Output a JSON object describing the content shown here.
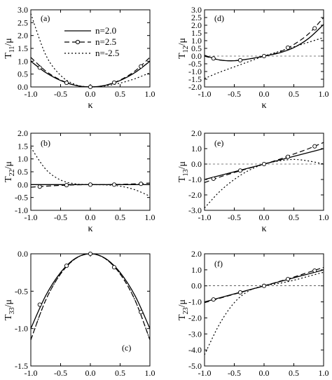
{
  "chart_data": [
    {
      "type": "line",
      "panel_label": "(a)",
      "xlabel": "κ",
      "ylabel_main": "T",
      "ylabel_sub": "11",
      "ylabel_tail": "/μ",
      "xlim": [
        -1.0,
        1.0
      ],
      "ylim": [
        0.0,
        3.0
      ],
      "xticks": [
        "-1.0",
        "-0.5",
        "0.0",
        "0.5",
        "1.0"
      ],
      "yticks": [
        "0.0",
        "0.5",
        "1.0",
        "1.5",
        "2.0",
        "2.5",
        "3.0"
      ],
      "x": [
        -1.0,
        -0.75,
        -0.5,
        -0.25,
        0.0,
        0.25,
        0.5,
        0.75,
        1.0
      ],
      "series": [
        {
          "name": "n=2.0",
          "style": "solid",
          "values": [
            1.0,
            0.56,
            0.25,
            0.06,
            0.0,
            0.06,
            0.25,
            0.56,
            1.0
          ]
        },
        {
          "name": "n=2.5",
          "style": "dashed",
          "values": [
            1.15,
            0.62,
            0.27,
            0.065,
            0.0,
            0.065,
            0.27,
            0.62,
            1.15
          ]
        },
        {
          "name": "n=-2.5",
          "style": "dotted",
          "values": [
            2.85,
            1.25,
            0.45,
            0.09,
            0.0,
            0.04,
            0.15,
            0.32,
            0.55
          ]
        }
      ],
      "markers": [
        {
          "x": -0.85,
          "y": 0.75
        },
        {
          "x": -0.4,
          "y": 0.16
        },
        {
          "x": 0.0,
          "y": 0.0
        },
        {
          "x": 0.4,
          "y": 0.17
        },
        {
          "x": 0.85,
          "y": 0.8
        }
      ]
    },
    {
      "type": "line",
      "panel_label": "(d)",
      "xlabel": "κ",
      "ylabel_main": "T",
      "ylabel_sub": "12",
      "ylabel_tail": "/μ",
      "xlim": [
        -1.0,
        1.0
      ],
      "ylim": [
        -2.0,
        3.0
      ],
      "xticks": [
        "-1.0",
        "-0.5",
        "0.0",
        "0.5",
        "1.0"
      ],
      "yticks": [
        "-2.0",
        "-1.5",
        "-1.0",
        "-0.5",
        "0.0",
        "0.5",
        "1.0",
        "1.5",
        "2.0",
        "2.5",
        "3.0"
      ],
      "x": [
        -1.0,
        -0.75,
        -0.5,
        -0.25,
        0.0,
        0.25,
        0.5,
        0.75,
        1.0
      ],
      "series": [
        {
          "name": "n=2.0",
          "style": "solid",
          "values": [
            0.05,
            -0.25,
            -0.3,
            -0.18,
            0.0,
            0.2,
            0.55,
            1.15,
            2.05
          ]
        },
        {
          "name": "n=2.5",
          "style": "dashed",
          "values": [
            0.0,
            -0.25,
            -0.3,
            -0.18,
            0.0,
            0.25,
            0.75,
            1.45,
            2.5
          ]
        },
        {
          "name": "n=-2.5",
          "style": "dotted",
          "values": [
            -1.45,
            -1.05,
            -0.7,
            -0.35,
            0.0,
            0.3,
            0.6,
            0.9,
            1.2
          ]
        }
      ],
      "markers": [
        {
          "x": -0.85,
          "y": -0.15
        },
        {
          "x": -0.4,
          "y": -0.27
        },
        {
          "x": 0.0,
          "y": 0.0
        },
        {
          "x": 0.4,
          "y": 0.55
        },
        {
          "x": 0.85,
          "y": 1.8
        }
      ]
    },
    {
      "type": "line",
      "panel_label": "(b)",
      "xlabel": "κ",
      "ylabel_main": "T",
      "ylabel_sub": "22",
      "ylabel_tail": "/μ",
      "xlim": [
        -1.0,
        1.0
      ],
      "ylim": [
        -1.0,
        2.0
      ],
      "xticks": [
        "-1.0",
        "-0.5",
        "0.0",
        "0.5",
        "1.0"
      ],
      "yticks": [
        "-1.0",
        "-0.5",
        "0.0",
        "0.5",
        "1.0",
        "1.5",
        "2.0"
      ],
      "x": [
        -1.0,
        -0.75,
        -0.5,
        -0.25,
        0.0,
        0.25,
        0.5,
        0.75,
        1.0
      ],
      "series": [
        {
          "name": "n=2.0",
          "style": "solid",
          "values": [
            0.0,
            0.0,
            0.0,
            0.0,
            0.0,
            0.0,
            0.0,
            0.0,
            0.0
          ]
        },
        {
          "name": "n=2.5",
          "style": "dashed",
          "values": [
            -0.1,
            -0.06,
            -0.03,
            -0.01,
            0.0,
            0.0,
            0.01,
            0.03,
            0.06
          ]
        },
        {
          "name": "n=-2.5",
          "style": "dotted",
          "values": [
            1.45,
            0.6,
            0.18,
            0.03,
            0.0,
            -0.01,
            -0.06,
            -0.2,
            -0.45
          ]
        }
      ],
      "markers": [
        {
          "x": -0.85,
          "y": -0.08
        },
        {
          "x": -0.4,
          "y": -0.02
        },
        {
          "x": 0.0,
          "y": 0.0
        },
        {
          "x": 0.4,
          "y": 0.0
        },
        {
          "x": 0.85,
          "y": 0.03
        }
      ]
    },
    {
      "type": "line",
      "panel_label": "(e)",
      "xlabel": "κ",
      "ylabel_main": "T",
      "ylabel_sub": "13",
      "ylabel_tail": "/μ",
      "xlim": [
        -1.0,
        1.0
      ],
      "ylim": [
        -3.0,
        2.0
      ],
      "xticks": [
        "-1.0",
        "-0.5",
        "0.0",
        "0.5",
        "1.0"
      ],
      "yticks": [
        "-3.0",
        "-2.0",
        "-1.0",
        "0.0",
        "1.0",
        "2.0"
      ],
      "x": [
        -1.0,
        -0.75,
        -0.5,
        -0.25,
        0.0,
        0.25,
        0.5,
        0.75,
        1.0
      ],
      "series": [
        {
          "name": "n=2.0",
          "style": "solid",
          "values": [
            -1.0,
            -0.75,
            -0.5,
            -0.25,
            0.0,
            0.25,
            0.5,
            0.75,
            1.0
          ]
        },
        {
          "name": "n=2.5",
          "style": "dashed",
          "values": [
            -1.2,
            -0.85,
            -0.55,
            -0.27,
            0.0,
            0.3,
            0.65,
            1.0,
            1.4
          ]
        },
        {
          "name": "n=-2.5",
          "style": "dotted",
          "values": [
            -2.85,
            -1.8,
            -1.0,
            -0.4,
            0.0,
            0.2,
            0.3,
            0.2,
            0.0
          ]
        }
      ],
      "markers": [
        {
          "x": -0.85,
          "y": -0.95
        },
        {
          "x": -0.4,
          "y": -0.42
        },
        {
          "x": 0.0,
          "y": 0.0
        },
        {
          "x": 0.4,
          "y": 0.47
        },
        {
          "x": 0.85,
          "y": 1.15
        }
      ]
    },
    {
      "type": "line",
      "panel_label": "(c)",
      "xlabel": "κ",
      "ylabel_main": "T",
      "ylabel_sub": "33",
      "ylabel_tail": "/μ",
      "xlim": [
        -1.0,
        1.0
      ],
      "ylim": [
        -1.5,
        0.0
      ],
      "xticks": [
        "-1.0",
        "-0.5",
        "0.0",
        "0.5",
        "1.0"
      ],
      "yticks": [
        "-1.5",
        "-1.0",
        "-0.5",
        "0.0"
      ],
      "x": [
        -1.0,
        -0.75,
        -0.5,
        -0.25,
        0.0,
        0.25,
        0.5,
        0.75,
        1.0
      ],
      "series": [
        {
          "name": "n=2.0",
          "style": "solid",
          "values": [
            -1.0,
            -0.56,
            -0.25,
            -0.06,
            0.0,
            -0.06,
            -0.25,
            -0.56,
            -1.0
          ]
        },
        {
          "name": "n=2.5",
          "style": "dashed",
          "values": [
            -1.15,
            -0.62,
            -0.27,
            -0.065,
            0.0,
            -0.065,
            -0.27,
            -0.62,
            -1.15
          ]
        },
        {
          "name": "n=-2.5",
          "style": "dotted",
          "values": [
            -1.15,
            -0.62,
            -0.27,
            -0.065,
            0.0,
            -0.065,
            -0.27,
            -0.62,
            -1.15
          ]
        }
      ],
      "markers": [
        {
          "x": -0.85,
          "y": -0.68
        },
        {
          "x": -0.4,
          "y": -0.16
        },
        {
          "x": 0.0,
          "y": 0.0
        },
        {
          "x": 0.4,
          "y": -0.18
        },
        {
          "x": 0.85,
          "y": -0.78
        }
      ]
    },
    {
      "type": "line",
      "panel_label": "(f)",
      "xlabel": "κ",
      "ylabel_main": "T",
      "ylabel_sub": "23",
      "ylabel_tail": "/μ",
      "xlim": [
        -1.0,
        1.0
      ],
      "ylim": [
        -5.0,
        2.0
      ],
      "xticks": [
        "-1.0",
        "-0.5",
        "0.0",
        "0.5",
        "1.0"
      ],
      "yticks": [
        "-5.0",
        "-4.0",
        "-3.0",
        "-2.0",
        "-1.0",
        "0.0",
        "1.0",
        "2.0"
      ],
      "x": [
        -1.0,
        -0.75,
        -0.5,
        -0.25,
        0.0,
        0.25,
        0.5,
        0.75,
        1.0
      ],
      "series": [
        {
          "name": "n=2.0",
          "style": "solid",
          "values": [
            -1.0,
            -0.75,
            -0.5,
            -0.25,
            0.0,
            0.25,
            0.5,
            0.75,
            1.0
          ]
        },
        {
          "name": "n=2.5",
          "style": "dashed",
          "values": [
            -1.05,
            -0.78,
            -0.52,
            -0.26,
            0.0,
            0.27,
            0.55,
            0.85,
            1.15
          ]
        },
        {
          "name": "n=-2.5",
          "style": "dotted",
          "values": [
            -4.3,
            -2.4,
            -1.05,
            -0.3,
            0.0,
            0.15,
            0.35,
            0.6,
            0.85
          ]
        }
      ],
      "markers": [
        {
          "x": -0.85,
          "y": -0.85
        },
        {
          "x": -0.4,
          "y": -0.41
        },
        {
          "x": 0.0,
          "y": 0.0
        },
        {
          "x": 0.4,
          "y": 0.42
        },
        {
          "x": 0.85,
          "y": 0.95
        }
      ]
    }
  ],
  "legend": {
    "entries": [
      {
        "label": "n=2.0",
        "style": "solid"
      },
      {
        "label": "n=2.5",
        "style": "dashed"
      },
      {
        "label": "n=-2.5",
        "style": "dotted"
      }
    ]
  }
}
